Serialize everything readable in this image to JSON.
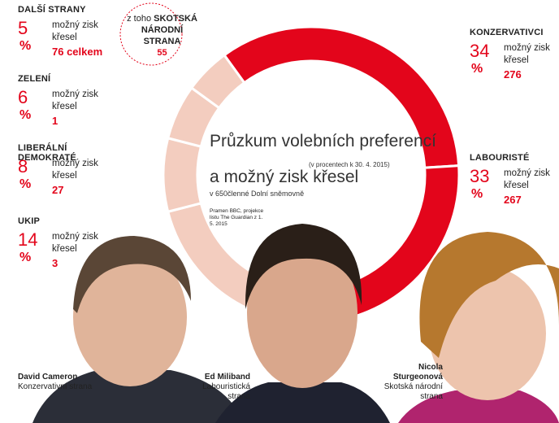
{
  "chart_data": {
    "type": "donut",
    "title": "Průzkum volebních preferencí",
    "title_note": "(v procentech k 30. 4. 2015)",
    "title_line2": "a možný zisk křesel",
    "subtitle": "v 650členné Dolní sněmovně",
    "source": "Pramen BBC, projekce listu The Guardian z 1. 5. 2015",
    "categories": [
      "KONZERVATIVCI",
      "LABOURISTÉ",
      "UKIP",
      "LIBERÁLNÍ DEMOKRATÉ",
      "ZELENÍ",
      "DALŠÍ STRANY"
    ],
    "values": [
      34,
      33,
      14,
      8,
      6,
      5
    ],
    "colors": [
      "#e3051b",
      "#e3051b",
      "#f3cdbf",
      "#f3cdbf",
      "#f3cdbf",
      "#f3cdbf"
    ],
    "percent_sign": "%",
    "seats_label": "možný zisk křesel",
    "seats": [
      276,
      267,
      3,
      27,
      1,
      {
        "value": 76,
        "label": "76 celkem"
      }
    ],
    "annotation": {
      "prefix": "z toho",
      "name": "SKOTSKÁ NÁRODNÍ STRANA",
      "seats": 55
    },
    "people": [
      {
        "name": "David Cameron",
        "party": "Konzervativní strana"
      },
      {
        "name": "Ed Miliband",
        "party": "Labouristická strana"
      },
      {
        "name": "Nicola Sturgeonová",
        "party": "Skotská národní strana"
      }
    ]
  }
}
